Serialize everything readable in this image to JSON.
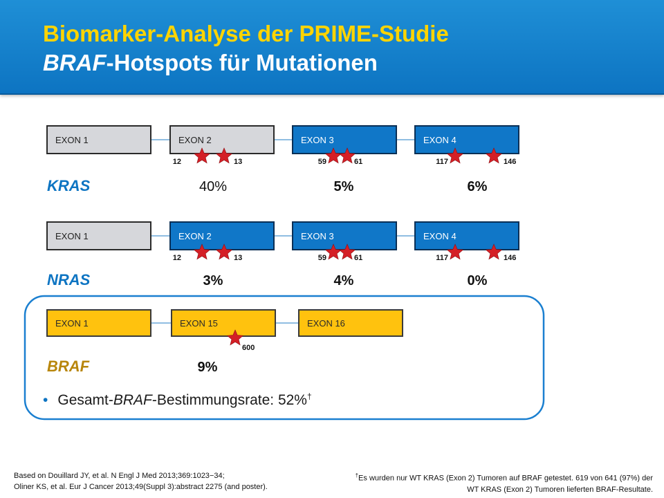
{
  "title": {
    "line1": "Biomarker-Analyse der PRIME-Studie",
    "line2_italic": "BRAF",
    "line2_rest": "-Hotspots für Mutationen"
  },
  "genes": [
    {
      "name": "KRAS",
      "name_color": "#0d74c2",
      "exons": [
        {
          "label": "EXON 1",
          "style": "gray"
        },
        {
          "label": "EXON 2",
          "style": "gray"
        },
        {
          "label": "EXON 3",
          "style": "blue"
        },
        {
          "label": "EXON 4",
          "style": "blue"
        }
      ],
      "hotspots": [
        "12",
        "13",
        "59",
        "61",
        "117",
        "146"
      ],
      "percents": [
        {
          "value": "40%",
          "bold": false
        },
        {
          "value": "5%",
          "bold": true
        },
        {
          "value": "6%",
          "bold": true
        }
      ]
    },
    {
      "name": "NRAS",
      "name_color": "#0d74c2",
      "exons": [
        {
          "label": "EXON 1",
          "style": "gray"
        },
        {
          "label": "EXON 2",
          "style": "blue"
        },
        {
          "label": "EXON 3",
          "style": "blue"
        },
        {
          "label": "EXON 4",
          "style": "blue"
        }
      ],
      "hotspots": [
        "12",
        "13",
        "59",
        "61",
        "117",
        "146"
      ],
      "percents": [
        {
          "value": "3%",
          "bold": true
        },
        {
          "value": "4%",
          "bold": true
        },
        {
          "value": "0%",
          "bold": true
        }
      ]
    },
    {
      "name": "BRAF",
      "name_color": "#b8860b",
      "exons": [
        {
          "label": "EXON 1",
          "style": "yellow"
        },
        {
          "label": "EXON 15",
          "style": "yellow"
        },
        {
          "label": "EXON 16",
          "style": "yellow"
        }
      ],
      "hotspots": [
        "600"
      ],
      "percents": [
        {
          "value": "9%",
          "bold": true
        }
      ]
    }
  ],
  "bullet": {
    "prefix": "Gesamt-",
    "italic": "BRAF",
    "suffix": "-Bestimmungsrate: 52%",
    "mark": "†"
  },
  "references": {
    "line1": "Based on Douillard JY, et al. N Engl J Med 2013;369:1023−34;",
    "line2": "Oliner KS, et al. Eur J Cancer 2013;49(Suppl 3):abstract 2275 (and poster)."
  },
  "footnote": {
    "mark": "†",
    "text": "Es wurden nur WT KRAS (Exon 2) Tumoren auf BRAF getestet. 619 von 641 (97%) der WT KRAS (Exon 2) Tumoren lieferten BRAF-Resultate."
  },
  "colors": {
    "header_blue": "#0d74c2",
    "title_yellow": "#ffd400",
    "exon_gray": "#d6d7db",
    "exon_blue": "#1077c8",
    "exon_yellow": "#ffc20e",
    "star_red": "#d41f26",
    "box_border": "#1a7fd0"
  }
}
